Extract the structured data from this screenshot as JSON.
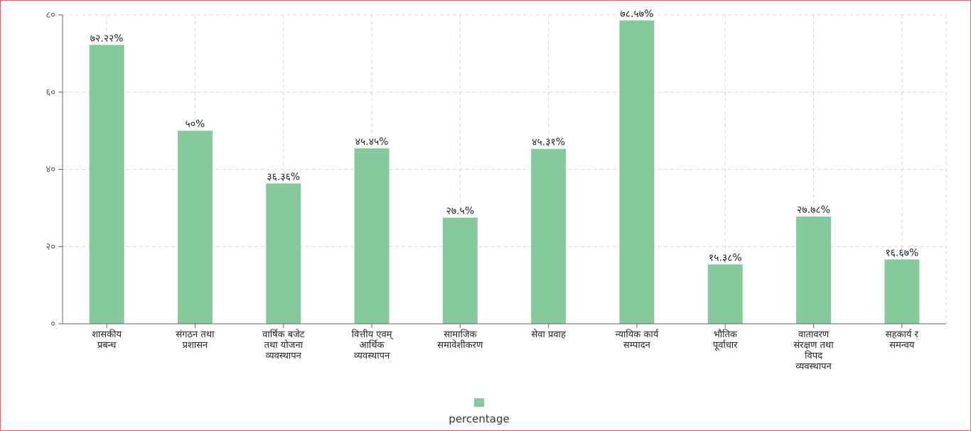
{
  "chart_data": {
    "type": "bar",
    "categories": [
      [
        "शासकीय",
        "प्रबन्ध"
      ],
      [
        "संगठन तथा",
        "प्रशासन"
      ],
      [
        "वार्षिक बजेट",
        "तथा योजना",
        "व्यवस्थापन"
      ],
      [
        "वित्तीय एवम्",
        "आर्थिक",
        "व्यवस्थापन"
      ],
      [
        "सामाजिक",
        "समावेशीकरण"
      ],
      [
        "सेवा प्रवाह"
      ],
      [
        "न्यायिक कार्य",
        "सम्पादन"
      ],
      [
        "भौतिक",
        "पूर्वाधार"
      ],
      [
        "वातावरण",
        "संरक्षण तथा",
        "विपद",
        "व्यवस्थापन"
      ],
      [
        "सहकार्य र",
        "समन्वय"
      ]
    ],
    "values": [
      72.22,
      50,
      36.36,
      45.45,
      27.5,
      45.31,
      78.57,
      15.38,
      27.78,
      16.67
    ],
    "value_labels": [
      "७२.२२%",
      "५०%",
      "३६.३६%",
      "४५.४५%",
      "२७.५%",
      "४५.३१%",
      "७८.५७%",
      "१५.३८%",
      "२७.७८%",
      "१६.६७%"
    ],
    "ylim": [
      0,
      80
    ],
    "yticks": [
      0,
      20,
      40,
      60,
      80
    ],
    "ytick_labels": [
      "०",
      "२०",
      "४०",
      "६०",
      "८०"
    ],
    "title": "",
    "xlabel": "",
    "ylabel": "",
    "grid": true,
    "legend": {
      "label": "percentage",
      "position": "bottom-center"
    },
    "colors": {
      "bar": "#85c99d",
      "grid": "#d6d6d6",
      "axis": "#666666",
      "frame": "#e06666"
    }
  }
}
